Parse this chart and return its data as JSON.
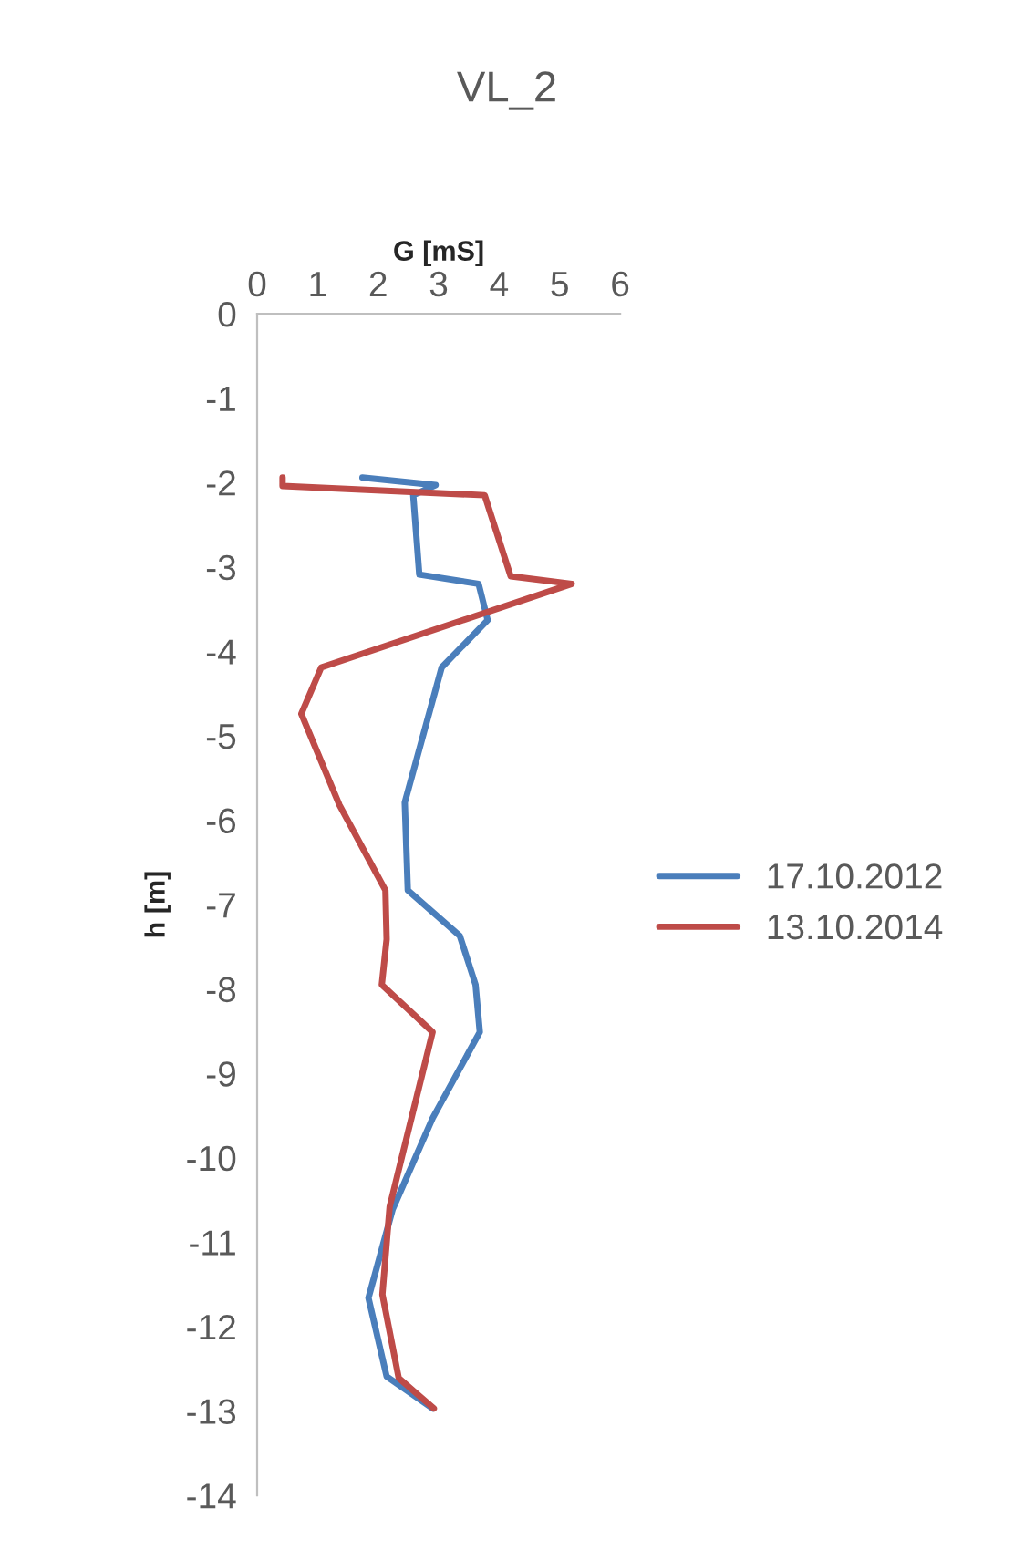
{
  "chart_data": {
    "type": "line",
    "title": "VL_2",
    "xlabel": "G [mS]",
    "ylabel": "h [m]",
    "xlim": [
      0,
      6
    ],
    "xticks": [
      0,
      1,
      2,
      3,
      4,
      5,
      6
    ],
    "ylim": [
      -14,
      0
    ],
    "yticks": [
      -14,
      -13,
      -12,
      -11,
      -10,
      -9,
      -8,
      -7,
      -6,
      -5,
      -4,
      -3,
      -2,
      -1,
      0
    ],
    "grid": false,
    "legend": "right",
    "marker": "none",
    "line_style": "solid",
    "series": [
      {
        "name": "17.10.2012",
        "color": "#4a7ebb",
        "x": [
          1.74,
          2.95,
          2.58,
          2.68,
          3.66,
          3.81,
          3.05,
          2.44,
          2.49,
          3.35,
          3.61,
          3.68,
          2.9,
          2.24,
          1.84,
          2.14,
          2.9
        ],
        "values": [
          -1.94,
          -2.03,
          -2.15,
          -3.09,
          -3.2,
          -3.63,
          -4.19,
          -5.79,
          -6.83,
          -7.37,
          -7.95,
          -8.51,
          -9.53,
          -10.61,
          -11.66,
          -12.59,
          -12.97
        ]
      },
      {
        "name": "13.10.2014",
        "color": "#be4b48",
        "x": [
          0.42,
          0.42,
          3.76,
          4.19,
          5.2,
          1.06,
          0.73,
          1.36,
          2.12,
          2.14,
          2.06,
          2.9,
          2.19,
          2.07,
          2.34,
          2.92
        ],
        "values": [
          -1.94,
          -2.04,
          -2.15,
          -3.11,
          -3.2,
          -4.19,
          -4.74,
          -5.82,
          -6.83,
          -7.41,
          -7.95,
          -8.51,
          -10.58,
          -11.62,
          -12.61,
          -12.97
        ]
      }
    ]
  }
}
